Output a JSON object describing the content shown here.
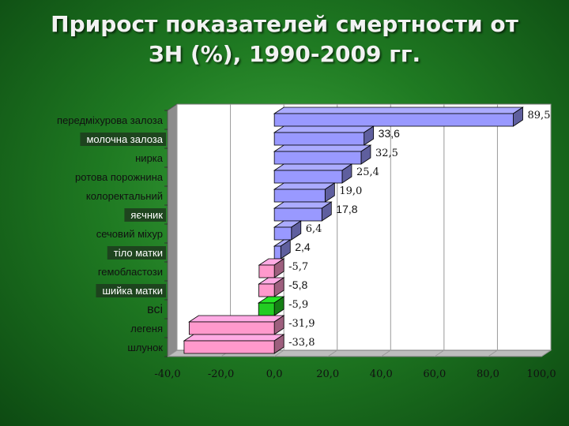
{
  "title_line1": "Прирост показателей смертности от",
  "title_line2": "ЗН (%), 1990-2009 гг.",
  "colors": {
    "bar_positive": "#9999ff",
    "bar_negative": "#ff99cc",
    "bar_total": "#22cc22",
    "plot_bg": "#ffffff",
    "wall_side": "#8c8c8c"
  },
  "chart_data": {
    "type": "bar",
    "orientation": "horizontal",
    "categories": [
      "передміхурова залоза",
      "молочна залоза",
      "нирка",
      "ротова порожнина",
      "колоректальний",
      "яєчник",
      "сечовий міхур",
      "тіло матки",
      "гемобластози",
      "шийка матки",
      "всі",
      "легеня",
      "шлунок"
    ],
    "values": [
      89.5,
      33.6,
      32.5,
      25.4,
      19.0,
      17.8,
      6.4,
      2.4,
      -5.7,
      -5.8,
      -5.9,
      -31.9,
      -33.8
    ],
    "value_labels": [
      "89,5",
      "33,6",
      "32,5",
      "25,4",
      "19,0",
      "17,8",
      "6,4",
      "2,4",
      "-5,7",
      "-5,8",
      "-5,9",
      "-31,9",
      "-33,8"
    ],
    "xlim": [
      -40,
      100
    ],
    "x_ticks": [
      "-40,0",
      "-20,0",
      "0,0",
      "20,0",
      "40,0",
      "60,0",
      "80,0",
      "100,0"
    ],
    "grid": true,
    "style": "3d"
  }
}
